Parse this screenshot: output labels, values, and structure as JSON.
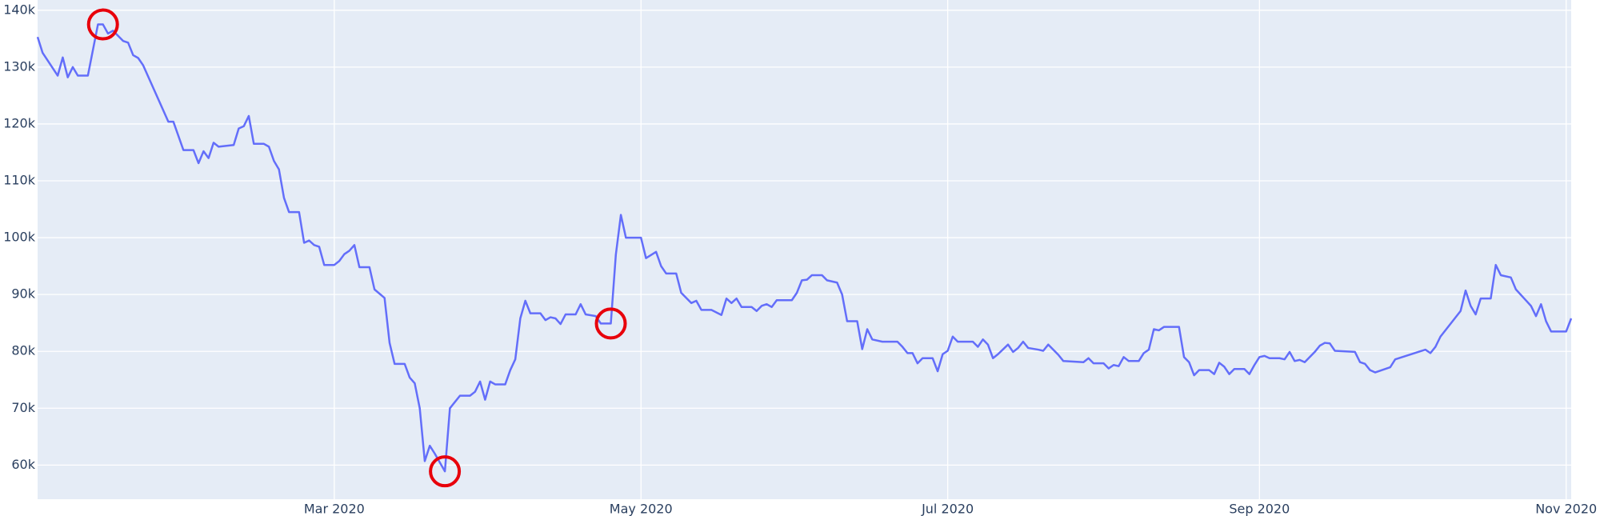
{
  "chart_data": {
    "type": "line",
    "color": "#636efa",
    "grid": true,
    "xlim": [
      "2020-01-02",
      "2020-11-02"
    ],
    "ylim": [
      54000,
      141800
    ],
    "xticks": [
      {
        "value": "2020-03-01",
        "label": "Mar 2020"
      },
      {
        "value": "2020-05-01",
        "label": "May 2020"
      },
      {
        "value": "2020-07-01",
        "label": "Jul 2020"
      },
      {
        "value": "2020-09-01",
        "label": "Sep 2020"
      },
      {
        "value": "2020-11-01",
        "label": "Nov 2020"
      }
    ],
    "yticks": [
      {
        "value": 60000,
        "label": "60k"
      },
      {
        "value": 70000,
        "label": "70k"
      },
      {
        "value": 80000,
        "label": "80k"
      },
      {
        "value": 90000,
        "label": "90k"
      },
      {
        "value": 100000,
        "label": "100k"
      },
      {
        "value": 110000,
        "label": "110k"
      },
      {
        "value": 120000,
        "label": "120k"
      },
      {
        "value": 130000,
        "label": "130k"
      },
      {
        "value": 140000,
        "label": "140k"
      }
    ],
    "x": [
      "2020-01-02",
      "2020-01-03",
      "2020-01-06",
      "2020-01-07",
      "2020-01-08",
      "2020-01-09",
      "2020-01-10",
      "2020-01-12",
      "2020-01-14",
      "2020-01-15",
      "2020-01-16",
      "2020-01-17",
      "2020-01-19",
      "2020-01-20",
      "2020-01-21",
      "2020-01-22",
      "2020-01-23",
      "2020-01-28",
      "2020-01-29",
      "2020-01-31",
      "2020-02-02",
      "2020-02-03",
      "2020-02-04",
      "2020-02-05",
      "2020-02-06",
      "2020-02-07",
      "2020-02-10",
      "2020-02-11",
      "2020-02-12",
      "2020-02-13",
      "2020-02-14",
      "2020-02-16",
      "2020-02-17",
      "2020-02-18",
      "2020-02-19",
      "2020-02-20",
      "2020-02-21",
      "2020-02-23",
      "2020-02-24",
      "2020-02-25",
      "2020-02-26",
      "2020-02-27",
      "2020-02-28",
      "2020-03-01",
      "2020-03-02",
      "2020-03-03",
      "2020-03-04",
      "2020-03-05",
      "2020-03-06",
      "2020-03-08",
      "2020-03-09",
      "2020-03-11",
      "2020-03-12",
      "2020-03-13",
      "2020-03-15",
      "2020-03-16",
      "2020-03-17",
      "2020-03-18",
      "2020-03-19",
      "2020-03-20",
      "2020-03-21",
      "2020-03-23",
      "2020-03-24",
      "2020-03-25",
      "2020-03-26",
      "2020-03-28",
      "2020-03-29",
      "2020-03-30",
      "2020-03-31",
      "2020-04-01",
      "2020-04-02",
      "2020-04-04",
      "2020-04-05",
      "2020-04-06",
      "2020-04-07",
      "2020-04-08",
      "2020-04-09",
      "2020-04-11",
      "2020-04-12",
      "2020-04-13",
      "2020-04-14",
      "2020-04-15",
      "2020-04-16",
      "2020-04-18",
      "2020-04-19",
      "2020-04-20",
      "2020-04-22",
      "2020-04-23",
      "2020-04-25",
      "2020-04-26",
      "2020-04-27",
      "2020-04-28",
      "2020-05-01",
      "2020-05-02",
      "2020-05-04",
      "2020-05-05",
      "2020-05-06",
      "2020-05-08",
      "2020-05-09",
      "2020-05-11",
      "2020-05-12",
      "2020-05-13",
      "2020-05-15",
      "2020-05-17",
      "2020-05-18",
      "2020-05-19",
      "2020-05-20",
      "2020-05-21",
      "2020-05-23",
      "2020-05-24",
      "2020-05-25",
      "2020-05-26",
      "2020-05-27",
      "2020-05-28",
      "2020-05-30",
      "2020-05-31",
      "2020-06-01",
      "2020-06-02",
      "2020-06-03",
      "2020-06-04",
      "2020-06-06",
      "2020-06-07",
      "2020-06-09",
      "2020-06-10",
      "2020-06-11",
      "2020-06-13",
      "2020-06-14",
      "2020-06-15",
      "2020-06-16",
      "2020-06-18",
      "2020-06-21",
      "2020-06-22",
      "2020-06-23",
      "2020-06-24",
      "2020-06-25",
      "2020-06-26",
      "2020-06-28",
      "2020-06-29",
      "2020-06-30",
      "2020-07-01",
      "2020-07-02",
      "2020-07-03",
      "2020-07-06",
      "2020-07-07",
      "2020-07-08",
      "2020-07-09",
      "2020-07-10",
      "2020-07-11",
      "2020-07-13",
      "2020-07-14",
      "2020-07-15",
      "2020-07-16",
      "2020-07-17",
      "2020-07-19",
      "2020-07-20",
      "2020-07-21",
      "2020-07-22",
      "2020-07-23",
      "2020-07-24",
      "2020-07-28",
      "2020-07-29",
      "2020-07-30",
      "2020-08-01",
      "2020-08-02",
      "2020-08-03",
      "2020-08-04",
      "2020-08-05",
      "2020-08-06",
      "2020-08-08",
      "2020-08-09",
      "2020-08-10",
      "2020-08-11",
      "2020-08-12",
      "2020-08-13",
      "2020-08-16",
      "2020-08-17",
      "2020-08-18",
      "2020-08-19",
      "2020-08-20",
      "2020-08-22",
      "2020-08-23",
      "2020-08-24",
      "2020-08-25",
      "2020-08-26",
      "2020-08-27",
      "2020-08-29",
      "2020-08-30",
      "2020-08-31",
      "2020-09-01",
      "2020-09-02",
      "2020-09-03",
      "2020-09-05",
      "2020-09-06",
      "2020-09-07",
      "2020-09-08",
      "2020-09-09",
      "2020-09-10",
      "2020-09-12",
      "2020-09-13",
      "2020-09-14",
      "2020-09-15",
      "2020-09-16",
      "2020-09-20",
      "2020-09-21",
      "2020-09-22",
      "2020-09-23",
      "2020-09-24",
      "2020-09-27",
      "2020-09-28",
      "2020-10-04",
      "2020-10-05",
      "2020-10-06",
      "2020-10-07",
      "2020-10-11",
      "2020-10-12",
      "2020-10-13",
      "2020-10-14",
      "2020-10-15",
      "2020-10-17",
      "2020-10-18",
      "2020-10-19",
      "2020-10-21",
      "2020-10-22",
      "2020-10-25",
      "2020-10-26",
      "2020-10-27",
      "2020-10-28",
      "2020-10-29",
      "2020-10-31",
      "2020-11-01",
      "2020-11-02"
    ],
    "values": [
      135300,
      132500,
      128500,
      131700,
      128200,
      130000,
      128500,
      128500,
      137500,
      137500,
      135900,
      136400,
      134600,
      134300,
      132100,
      131600,
      130300,
      120400,
      120400,
      115400,
      115400,
      113100,
      115200,
      114000,
      116700,
      116000,
      116300,
      119200,
      119600,
      121400,
      116500,
      116500,
      116000,
      113500,
      112000,
      107000,
      104500,
      104500,
      99100,
      99500,
      98700,
      98400,
      95200,
      95200,
      95900,
      97100,
      97700,
      98700,
      94800,
      94800,
      90900,
      89400,
      81500,
      77800,
      77800,
      75400,
      74400,
      70000,
      60700,
      63400,
      62000,
      58900,
      70000,
      71100,
      72200,
      72200,
      72900,
      74700,
      71500,
      74700,
      74200,
      74200,
      76700,
      78600,
      85800,
      88900,
      86700,
      86700,
      85500,
      86000,
      85800,
      84800,
      86500,
      86500,
      88300,
      86500,
      86200,
      84900,
      84900,
      97000,
      104000,
      100000,
      100000,
      96400,
      97500,
      95000,
      93700,
      93700,
      90300,
      88500,
      88900,
      87300,
      87300,
      86400,
      89300,
      88500,
      89300,
      87800,
      87800,
      87100,
      88000,
      88300,
      87800,
      89000,
      89000,
      89000,
      90300,
      92500,
      92600,
      93400,
      93400,
      92500,
      92100,
      90000,
      85300,
      85300,
      80400,
      83900,
      82100,
      81700,
      81700,
      80800,
      79700,
      79700,
      77900,
      78800,
      78800,
      76500,
      79500,
      80100,
      82600,
      81700,
      81700,
      80800,
      82100,
      81200,
      78800,
      79500,
      81200,
      79900,
      80600,
      81700,
      80600,
      80300,
      80100,
      81200,
      80300,
      79400,
      78300,
      78100,
      78800,
      77900,
      77900,
      77000,
      77600,
      77400,
      79000,
      78300,
      78300,
      79700,
      80300,
      83900,
      83700,
      84300,
      84300,
      79000,
      78100,
      75800,
      76700,
      76700,
      76000,
      78000,
      77300,
      76000,
      76900,
      76900,
      76000,
      77600,
      79000,
      79200,
      78800,
      78800,
      78600,
      79900,
      78300,
      78500,
      78100,
      79900,
      81000,
      81500,
      81400,
      80100,
      79900,
      78100,
      77800,
      76700,
      76300,
      77200,
      78600,
      80300,
      79700,
      80800,
      82600,
      87100,
      90700,
      88000,
      86500,
      89300,
      89300,
      95200,
      93400,
      93000,
      90900,
      88000,
      86200,
      88300,
      85300,
      83500,
      83500,
      83500,
      85800
    ],
    "highlights": {
      "color": "#e8000b",
      "x": [
        "2020-01-15",
        "2020-03-23",
        "2020-04-25"
      ],
      "values": [
        137500,
        58900,
        84900
      ]
    }
  }
}
